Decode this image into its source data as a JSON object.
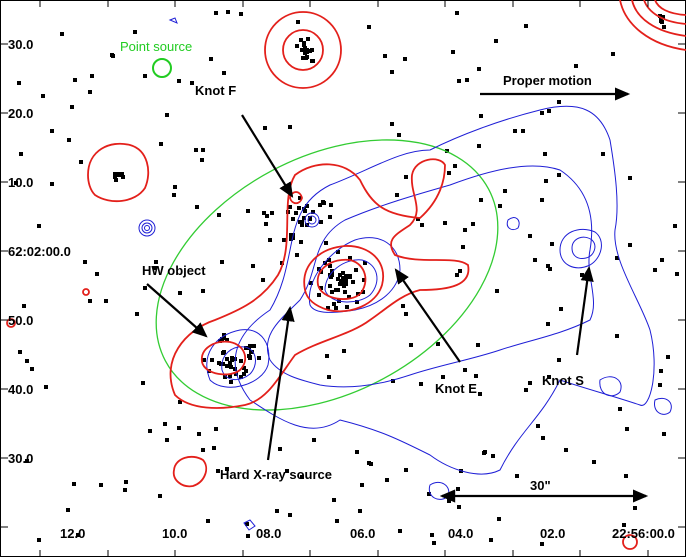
{
  "colors": {
    "xray_contours": "#e3201b",
    "ir_contours": "#1f1fd6",
    "ellipse": "#33cc33",
    "point_source": "#22cc22",
    "pixels": "#000000"
  },
  "axes": {
    "dec_ticks": [
      "30.0",
      "20.0",
      "10.0",
      "62:02:00.0",
      "50.0",
      "40.0",
      "30.0"
    ],
    "ra_ticks": [
      "12.0",
      "10.0",
      "08.0",
      "06.0",
      "04.0",
      "02.0",
      "22:56:00.0"
    ]
  },
  "annotations": {
    "point_source": "Point source",
    "knot_f": "Knot F",
    "proper_motion": "Proper motion",
    "hw_object": "HW object",
    "knot_e": "Knot E",
    "knot_s": "Knot S",
    "hard_xray": "Hard X-ray source",
    "scale_bar": "30\""
  }
}
